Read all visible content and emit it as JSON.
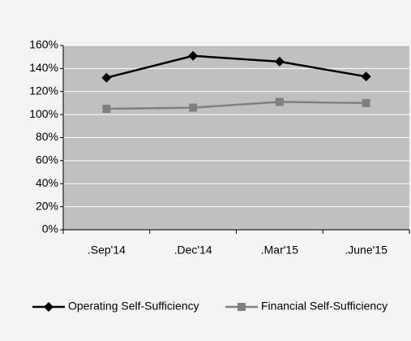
{
  "chart_data": {
    "type": "line",
    "categories": [
      ".Sep'14",
      ".Dec'14",
      ".Mar'15",
      ".June'15"
    ],
    "series": [
      {
        "name": "Operating Self-Sufficiency",
        "color": "#000000",
        "marker": "diamond",
        "values": [
          132,
          151,
          146,
          133
        ]
      },
      {
        "name": "Financial Self-Sufficiency",
        "color": "#808080",
        "marker": "square",
        "values": [
          105,
          106,
          111,
          110
        ]
      }
    ],
    "ylim": [
      0,
      160
    ],
    "yticks": [
      {
        "value": 0,
        "label": "0%"
      },
      {
        "value": 20,
        "label": "20%"
      },
      {
        "value": 40,
        "label": "40%"
      },
      {
        "value": 60,
        "label": "60%"
      },
      {
        "value": 80,
        "label": "80%"
      },
      {
        "value": 100,
        "label": "100%"
      },
      {
        "value": 120,
        "label": "120%"
      },
      {
        "value": 140,
        "label": "140%"
      },
      {
        "value": 160,
        "label": "160%"
      }
    ],
    "grid": true,
    "plot_background": "#c0c0c0",
    "legend": "bottom"
  }
}
